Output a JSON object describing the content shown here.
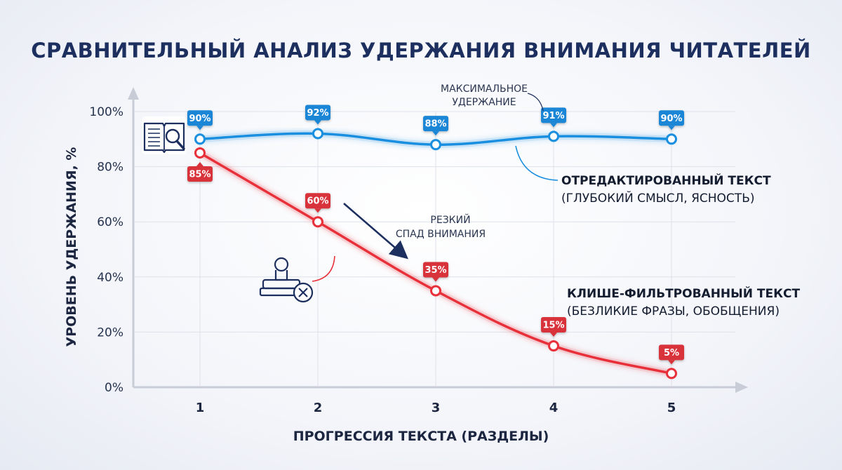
{
  "chart_data": {
    "type": "line",
    "title": "СРАВНИТЕЛЬНЫЙ АНАЛИЗ УДЕРЖАНИЯ ВНИМАНИЯ ЧИТАТЕЛЕЙ",
    "xlabel": "ПРОГРЕССИЯ ТЕКСТА (РАЗДЕЛЫ)",
    "ylabel": "УРОВЕНЬ УДЕРЖАНИЯ, %",
    "x": [
      1,
      2,
      3,
      4,
      5
    ],
    "xticks": [
      "1",
      "2",
      "3",
      "4",
      "5"
    ],
    "ylim": [
      0,
      100
    ],
    "yticks": [
      "0%",
      "20%",
      "40%",
      "60%",
      "80%",
      "100%"
    ],
    "grid": true,
    "series": [
      {
        "name": "ОТРЕДАКТИРОВАННЫЙ ТЕКСТ",
        "description": "(ГЛУБОКИЙ СМЫСЛ, ЯСНОСТЬ)",
        "color": "#1a8fe0",
        "label_color": "#1a86d6",
        "values": [
          90,
          92,
          88,
          91,
          90
        ],
        "labels": [
          "90%",
          "92%",
          "88%",
          "91%",
          "90%"
        ]
      },
      {
        "name": "КЛИШЕ-ФИЛЬТРОВАННЫЙ ТЕКСТ",
        "description": "(БЕЗЛИКИЕ ФРАЗЫ, ОБОБЩЕНИЯ)",
        "color": "#e8303a",
        "label_color": "#d8303a",
        "values": [
          85,
          60,
          35,
          15,
          5
        ],
        "labels": [
          "85%",
          "60%",
          "35%",
          "15%",
          "5%"
        ]
      }
    ],
    "annotations": {
      "max_retention": [
        "МАКСИМАЛЬНОЕ",
        "УДЕРЖАНИЕ"
      ],
      "sharp_drop": [
        "РЕЗКИЙ",
        "СПАД ВНИМАНИЯ"
      ]
    },
    "icons": {
      "book": "book-magnifier-icon",
      "stamp": "stamp-reject-icon"
    }
  }
}
